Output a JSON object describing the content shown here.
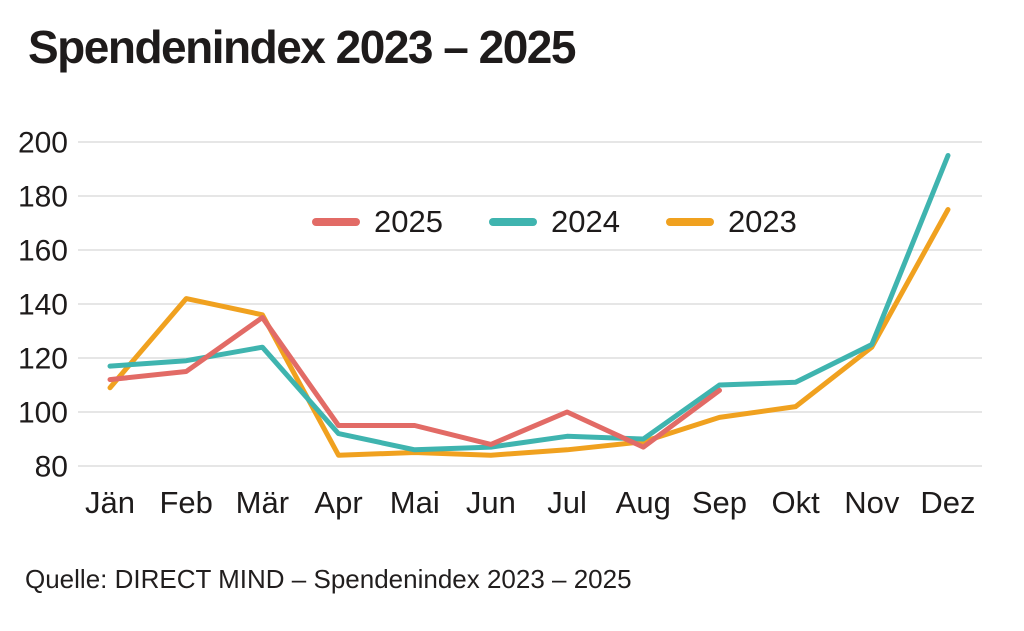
{
  "title": "Spendenindex 2023 – 2025",
  "source": "Quelle: DIRECT MIND – Spendenindex 2023 – 2025",
  "colors": {
    "series_2025": "#E26B66",
    "series_2024": "#3FB4AF",
    "series_2023": "#F0A11F",
    "grid": "#E3E3E3",
    "text": "#1E1B1B",
    "background": "#FFFFFF"
  },
  "chart_data": {
    "type": "line",
    "title": "Spendenindex 2023 – 2025",
    "categories": [
      "Jän",
      "Feb",
      "Mär",
      "Apr",
      "Mai",
      "Jun",
      "Jul",
      "Aug",
      "Sep",
      "Okt",
      "Nov",
      "Dez"
    ],
    "series": [
      {
        "name": "2025",
        "color": "#E26B66",
        "values": [
          112,
          115,
          135,
          95,
          95,
          88,
          100,
          87,
          108,
          null,
          null,
          null
        ]
      },
      {
        "name": "2024",
        "color": "#3FB4AF",
        "values": [
          117,
          119,
          124,
          92,
          86,
          87,
          91,
          90,
          110,
          111,
          125,
          195
        ]
      },
      {
        "name": "2023",
        "color": "#F0A11F",
        "values": [
          109,
          142,
          136,
          84,
          85,
          84,
          86,
          89,
          98,
          102,
          124,
          175
        ]
      }
    ],
    "xlabel": "",
    "ylabel": "",
    "ylim": [
      80,
      200
    ],
    "yticks": [
      200,
      180,
      160,
      140,
      120,
      100,
      80
    ],
    "grid": "horizontal",
    "legend_position": "top-center-inside",
    "legend_entries": [
      "2025",
      "2024",
      "2023"
    ]
  }
}
